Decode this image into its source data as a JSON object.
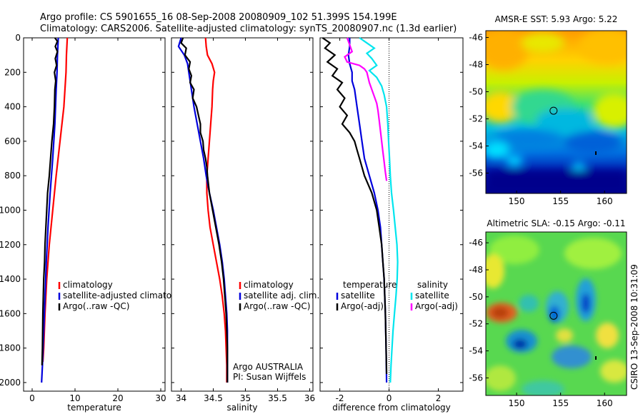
{
  "header": {
    "line1": "Argo profile: CS 5901655_16 08-Sep-2008 20080909_102 51.399S 154.199E",
    "line2": "Climatology: CARS2006. Satellite-adjusted climatology: synTS_20080907.nc (1.3d earlier)"
  },
  "credit": "CSIRO 13-Sep-2008 10:31:09",
  "colors": {
    "climatology": "#ff0000",
    "satellite": "#0000dd",
    "argo": "#000000",
    "sal_satellite": "#00e5ee",
    "sal_argo": "#ff00ff"
  },
  "chart_data": [
    {
      "type": "line",
      "xlabel": "temperature",
      "xlim": [
        -2,
        31
      ],
      "xticks": [
        0,
        10,
        20,
        30
      ],
      "ylim": [
        0,
        2050
      ],
      "yticks": [
        0,
        200,
        400,
        600,
        800,
        1000,
        1200,
        1400,
        1600,
        1800,
        2000
      ],
      "y_reversed": true,
      "legend": {
        "placement": "bottom-right",
        "entries": [
          "climatology",
          "satellite-adjusted climatology",
          "Argo(..raw -QC)"
        ]
      },
      "series": [
        {
          "name": "climatology",
          "color_key": "climatology",
          "points": [
            [
              8.2,
              0
            ],
            [
              8.1,
              50
            ],
            [
              8.0,
              100
            ],
            [
              7.9,
              200
            ],
            [
              7.4,
              400
            ],
            [
              6.5,
              600
            ],
            [
              5.6,
              800
            ],
            [
              4.8,
              1000
            ],
            [
              4.0,
              1200
            ],
            [
              3.4,
              1400
            ],
            [
              3.0,
              1600
            ],
            [
              2.7,
              1800
            ],
            [
              2.5,
              1880
            ]
          ]
        },
        {
          "name": "satellite-adjusted climatology",
          "color_key": "satellite",
          "points": [
            [
              6.1,
              0
            ],
            [
              6.0,
              50
            ],
            [
              5.9,
              100
            ],
            [
              5.8,
              200
            ],
            [
              5.6,
              300
            ],
            [
              5.3,
              500
            ],
            [
              4.8,
              700
            ],
            [
              4.2,
              900
            ],
            [
              3.7,
              1100
            ],
            [
              3.3,
              1300
            ],
            [
              3.0,
              1500
            ],
            [
              2.7,
              1700
            ],
            [
              2.4,
              1900
            ],
            [
              2.2,
              2000
            ]
          ]
        },
        {
          "name": "Argo(..raw -QC)",
          "color_key": "argo",
          "points": [
            [
              5.3,
              0
            ],
            [
              5.9,
              20
            ],
            [
              5.4,
              50
            ],
            [
              5.9,
              80
            ],
            [
              5.4,
              120
            ],
            [
              5.7,
              160
            ],
            [
              5.2,
              200
            ],
            [
              5.5,
              250
            ],
            [
              5.3,
              300
            ],
            [
              5.2,
              400
            ],
            [
              5.0,
              500
            ],
            [
              4.6,
              600
            ],
            [
              4.3,
              700
            ],
            [
              4.0,
              800
            ],
            [
              3.6,
              900
            ],
            [
              3.4,
              1000
            ],
            [
              3.2,
              1100
            ],
            [
              3.0,
              1200
            ],
            [
              2.9,
              1300
            ],
            [
              2.7,
              1400
            ],
            [
              2.6,
              1500
            ],
            [
              2.5,
              1600
            ],
            [
              2.4,
              1800
            ],
            [
              2.3,
              1900
            ]
          ]
        }
      ]
    },
    {
      "type": "line",
      "xlabel": "salinity",
      "xlim": [
        33.85,
        36.05
      ],
      "xticks": [
        34,
        34.5,
        35,
        35.5,
        36
      ],
      "xtick_labels": [
        "34",
        "34.5",
        "35",
        "35.5",
        "36"
      ],
      "ylim": [
        0,
        2050
      ],
      "y_reversed": true,
      "legend": {
        "placement": "bottom-right",
        "entries": [
          "climatology",
          "satellite adj. clim.",
          "Argo(..raw -QC)"
        ]
      },
      "annotation": [
        "Argo AUSTRALIA",
        "PI: Susan Wijffels"
      ],
      "series": [
        {
          "name": "climatology",
          "color_key": "climatology",
          "points": [
            [
              34.38,
              0
            ],
            [
              34.39,
              50
            ],
            [
              34.41,
              100
            ],
            [
              34.48,
              150
            ],
            [
              34.52,
              200
            ],
            [
              34.5,
              250
            ],
            [
              34.49,
              300
            ],
            [
              34.48,
              400
            ],
            [
              34.46,
              500
            ],
            [
              34.44,
              600
            ],
            [
              34.42,
              700
            ],
            [
              34.4,
              800
            ],
            [
              34.4,
              900
            ],
            [
              34.42,
              1000
            ],
            [
              34.45,
              1100
            ],
            [
              34.5,
              1200
            ],
            [
              34.55,
              1300
            ],
            [
              34.6,
              1400
            ],
            [
              34.64,
              1500
            ],
            [
              34.67,
              1600
            ],
            [
              34.69,
              1700
            ],
            [
              34.7,
              1800
            ],
            [
              34.71,
              1900
            ],
            [
              34.71,
              2000
            ]
          ]
        },
        {
          "name": "satellite adj. clim.",
          "color_key": "satellite",
          "points": [
            [
              34.0,
              0
            ],
            [
              33.96,
              50
            ],
            [
              34.05,
              100
            ],
            [
              34.1,
              150
            ],
            [
              34.12,
              200
            ],
            [
              34.16,
              300
            ],
            [
              34.2,
              400
            ],
            [
              34.25,
              500
            ],
            [
              34.3,
              600
            ],
            [
              34.35,
              700
            ],
            [
              34.39,
              800
            ],
            [
              34.44,
              900
            ],
            [
              34.5,
              1000
            ],
            [
              34.55,
              1100
            ],
            [
              34.6,
              1200
            ],
            [
              34.64,
              1300
            ],
            [
              34.67,
              1400
            ],
            [
              34.69,
              1500
            ],
            [
              34.71,
              1600
            ],
            [
              34.72,
              1700
            ],
            [
              34.72,
              1800
            ],
            [
              34.72,
              1900
            ],
            [
              34.72,
              2000
            ]
          ]
        },
        {
          "name": "Argo(..raw -QC)",
          "color_key": "argo",
          "points": [
            [
              34.03,
              0
            ],
            [
              34.0,
              30
            ],
            [
              34.08,
              60
            ],
            [
              34.06,
              100
            ],
            [
              34.14,
              140
            ],
            [
              34.12,
              180
            ],
            [
              34.16,
              220
            ],
            [
              34.14,
              260
            ],
            [
              34.2,
              300
            ],
            [
              34.18,
              350
            ],
            [
              34.24,
              400
            ],
            [
              34.27,
              450
            ],
            [
              34.3,
              500
            ],
            [
              34.3,
              550
            ],
            [
              34.34,
              600
            ],
            [
              34.35,
              650
            ],
            [
              34.38,
              700
            ],
            [
              34.4,
              750
            ],
            [
              34.41,
              800
            ],
            [
              34.44,
              900
            ],
            [
              34.49,
              1000
            ],
            [
              34.54,
              1100
            ],
            [
              34.59,
              1200
            ],
            [
              34.63,
              1300
            ],
            [
              34.66,
              1400
            ],
            [
              34.68,
              1500
            ],
            [
              34.7,
              1600
            ],
            [
              34.71,
              1700
            ],
            [
              34.72,
              1800
            ],
            [
              34.72,
              1900
            ],
            [
              34.72,
              2000
            ]
          ]
        }
      ]
    },
    {
      "type": "line",
      "xlabel": "difference from climatology",
      "xlim": [
        -2.8,
        3
      ],
      "xticks": [
        -2,
        0,
        2
      ],
      "ylim": [
        0,
        2050
      ],
      "y_reversed": true,
      "reference_line_x": 0,
      "legend": {
        "placement": "bottom",
        "entries": [
          "temperature",
          "satellite",
          "Argo(-adj)",
          "salinity",
          "satellite",
          "Argo(-adj)"
        ]
      },
      "series": [
        {
          "name": "temperature satellite",
          "color_key": "satellite",
          "points": [
            [
              -1.6,
              0
            ],
            [
              -1.6,
              50
            ],
            [
              -1.65,
              100
            ],
            [
              -1.6,
              150
            ],
            [
              -1.5,
              200
            ],
            [
              -1.5,
              250
            ],
            [
              -1.4,
              300
            ],
            [
              -1.3,
              400
            ],
            [
              -1.2,
              500
            ],
            [
              -1.1,
              600
            ],
            [
              -1.0,
              700
            ],
            [
              -0.8,
              800
            ],
            [
              -0.6,
              900
            ],
            [
              -0.45,
              1000
            ],
            [
              -0.35,
              1100
            ],
            [
              -0.3,
              1200
            ],
            [
              -0.25,
              1300
            ],
            [
              -0.2,
              1400
            ],
            [
              -0.15,
              1600
            ],
            [
              -0.12,
              1800
            ],
            [
              -0.1,
              2000
            ]
          ]
        },
        {
          "name": "temperature Argo(-adj)",
          "color_key": "argo",
          "points": [
            [
              -2.7,
              0
            ],
            [
              -2.4,
              30
            ],
            [
              -2.6,
              60
            ],
            [
              -2.2,
              100
            ],
            [
              -2.5,
              140
            ],
            [
              -2.1,
              180
            ],
            [
              -2.3,
              220
            ],
            [
              -1.9,
              260
            ],
            [
              -2.1,
              300
            ],
            [
              -1.8,
              350
            ],
            [
              -2.0,
              400
            ],
            [
              -1.7,
              450
            ],
            [
              -1.9,
              500
            ],
            [
              -1.6,
              550
            ],
            [
              -1.4,
              600
            ],
            [
              -1.3,
              650
            ],
            [
              -1.2,
              700
            ],
            [
              -1.0,
              800
            ],
            [
              -0.7,
              900
            ],
            [
              -0.5,
              1000
            ],
            [
              -0.4,
              1100
            ],
            [
              -0.3,
              1200
            ],
            [
              -0.25,
              1300
            ],
            [
              -0.2,
              1400
            ],
            [
              -0.15,
              1600
            ],
            [
              -0.12,
              1800
            ],
            [
              -0.1,
              1950
            ]
          ]
        },
        {
          "name": "salinity satellite",
          "color_key": "sal_satellite",
          "points": [
            [
              -1.2,
              0
            ],
            [
              -0.9,
              30
            ],
            [
              -0.6,
              60
            ],
            [
              -0.9,
              90
            ],
            [
              -0.7,
              120
            ],
            [
              -0.5,
              160
            ],
            [
              -0.8,
              190
            ],
            [
              -0.5,
              230
            ],
            [
              -0.3,
              280
            ],
            [
              -0.2,
              330
            ],
            [
              -0.1,
              400
            ],
            [
              -0.05,
              500
            ],
            [
              -0.02,
              600
            ],
            [
              0.02,
              700
            ],
            [
              0.05,
              800
            ],
            [
              0.1,
              900
            ],
            [
              0.18,
              1000
            ],
            [
              0.25,
              1100
            ],
            [
              0.32,
              1200
            ],
            [
              0.35,
              1300
            ],
            [
              0.33,
              1400
            ],
            [
              0.28,
              1500
            ],
            [
              0.22,
              1600
            ],
            [
              0.16,
              1700
            ],
            [
              0.12,
              1800
            ],
            [
              0.08,
              1900
            ],
            [
              0.05,
              2000
            ]
          ]
        },
        {
          "name": "salinity Argo(-adj)",
          "color_key": "sal_argo",
          "points": [
            [
              -1.7,
              0
            ],
            [
              -1.6,
              40
            ],
            [
              -1.5,
              80
            ],
            [
              -1.8,
              110
            ],
            [
              -1.7,
              140
            ],
            [
              -1.2,
              160
            ],
            [
              -1.0,
              180
            ],
            [
              -0.9,
              200
            ],
            [
              -0.8,
              260
            ],
            [
              -0.7,
              300
            ],
            [
              -0.6,
              340
            ],
            [
              -0.5,
              380
            ],
            [
              -0.45,
              420
            ],
            [
              -0.4,
              480
            ],
            [
              -0.35,
              540
            ],
            [
              -0.3,
              600
            ],
            [
              -0.25,
              660
            ],
            [
              -0.2,
              720
            ],
            [
              -0.15,
              780
            ],
            [
              -0.1,
              830
            ]
          ]
        }
      ]
    },
    {
      "type": "heatmap",
      "title": "AMSR-E SST: 5.93 Argo: 5.22",
      "xlim": [
        146.5,
        162.5
      ],
      "ylim": [
        -57.5,
        -45.5
      ],
      "xticks": [
        150,
        155,
        160
      ],
      "yticks": [
        -46,
        -48,
        -50,
        -52,
        -54,
        -56
      ],
      "marker": {
        "x": 154.2,
        "y": -51.4
      }
    },
    {
      "type": "heatmap",
      "title": "Altimetric SLA: -0.15 Argo: -0.11",
      "xlim": [
        146.5,
        162.5
      ],
      "ylim": [
        -57.3,
        -45.2
      ],
      "xticks": [
        150,
        155,
        160
      ],
      "yticks": [
        -46,
        -48,
        -50,
        -52,
        -54,
        -56
      ],
      "marker": {
        "x": 154.2,
        "y": -51.4
      }
    }
  ]
}
